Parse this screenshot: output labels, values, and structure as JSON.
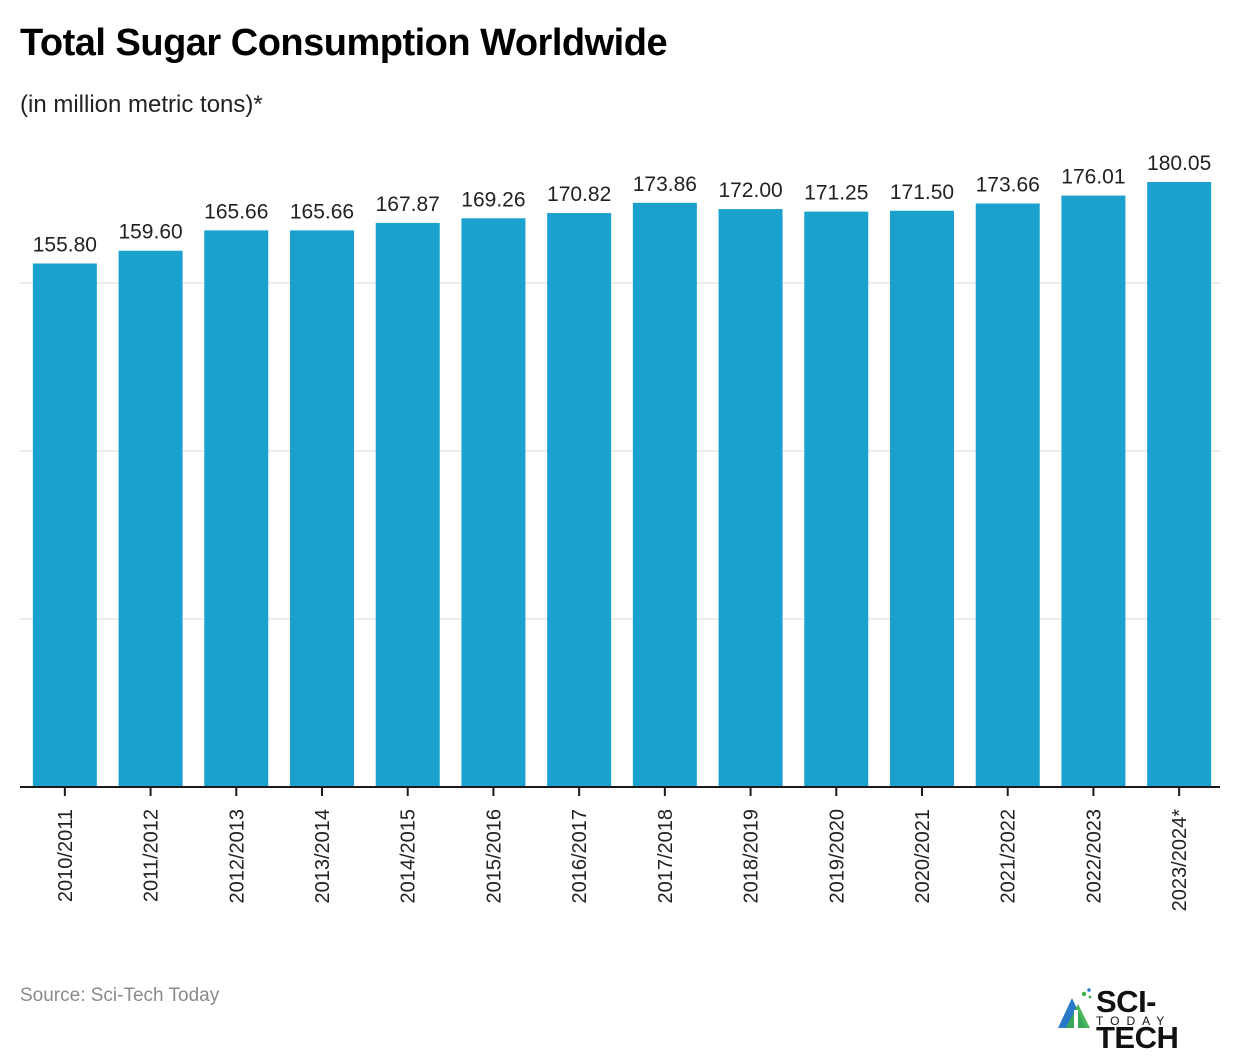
{
  "header": {
    "title": "Total Sugar Consumption Worldwide",
    "subtitle": "(in million metric tons)*"
  },
  "footer": {
    "source": "Source: Sci-Tech Today",
    "logo_text": "SCI-TECH",
    "logo_subtext": "TODAY"
  },
  "colors": {
    "bar": "#1aa1cd",
    "axis": "#1a1a1a",
    "grid": "#e6e6e6",
    "label": "#222222"
  },
  "chart_data": {
    "type": "bar",
    "title": "Total Sugar Consumption Worldwide",
    "subtitle": "(in million metric tons)*",
    "xlabel": "",
    "ylabel": "",
    "categories": [
      "2010/2011",
      "2011/2012",
      "2012/2013",
      "2013/2014",
      "2014/2015",
      "2015/2016",
      "2016/2017",
      "2017/2018",
      "2018/2019",
      "2019/2020",
      "2020/2021",
      "2021/2022",
      "2022/2023",
      "2023/2024*"
    ],
    "values": [
      155.8,
      159.6,
      165.66,
      165.66,
      167.87,
      169.26,
      170.82,
      173.86,
      172.0,
      171.25,
      171.5,
      173.66,
      176.01,
      180.05
    ],
    "value_labels": [
      "155.80",
      "159.60",
      "165.66",
      "165.66",
      "167.87",
      "169.26",
      "170.82",
      "173.86",
      "172.00",
      "171.25",
      "171.50",
      "173.66",
      "176.01",
      "180.05"
    ],
    "ylim": [
      0,
      180.05
    ],
    "gridlines": [
      50,
      100,
      150
    ],
    "grid": true,
    "y_tick_labels_shown": false,
    "legend": "none"
  }
}
